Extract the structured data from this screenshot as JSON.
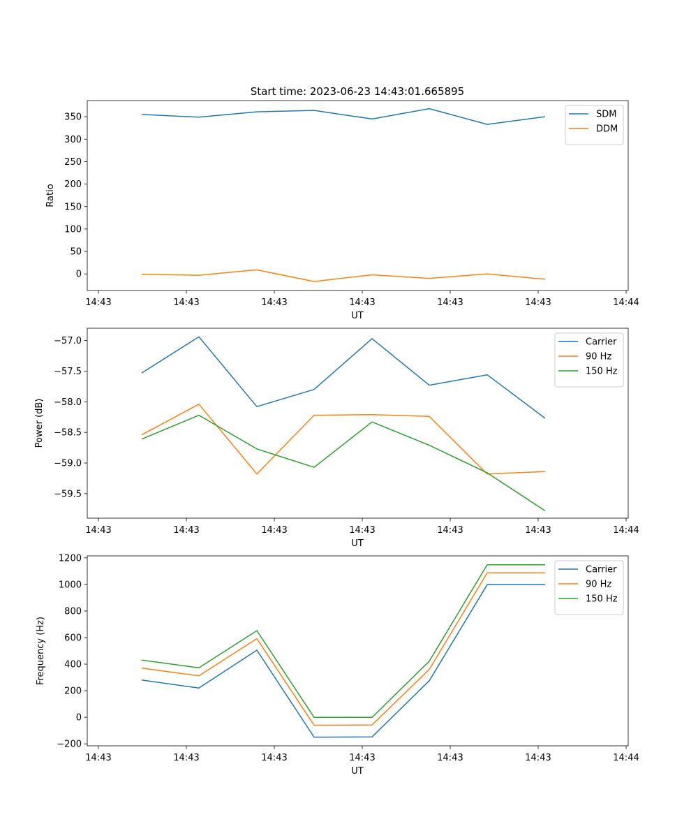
{
  "title": "Start time: 2023-06-23 14:43:01.665895",
  "colors": {
    "blue": "#1f77b4",
    "orange": "#ff7f0e",
    "green": "#2ca02c"
  },
  "chart_data": [
    {
      "type": "line",
      "title": "Start time: 2023-06-23 14:43:01.665895",
      "xlabel": "UT",
      "ylabel": "Ratio",
      "xtick_labels": [
        "14:43",
        "14:43",
        "14:43",
        "14:43",
        "14:43",
        "14:43",
        "14:44"
      ],
      "x_samples": [
        "p1",
        "p2",
        "p3",
        "p4",
        "p5",
        "p6",
        "p7",
        "p8"
      ],
      "yticks": [
        0,
        50,
        100,
        150,
        200,
        250,
        300,
        350
      ],
      "ylim": [
        -37,
        386
      ],
      "legend": "top-right",
      "grid": false,
      "series": [
        {
          "name": "SDM",
          "color": "#1f77b4",
          "values": [
            355,
            349,
            361,
            364,
            345,
            368,
            333,
            350
          ]
        },
        {
          "name": "DDM",
          "color": "#ff7f0e",
          "values": [
            -1,
            -3,
            9,
            -17,
            -2,
            -10,
            0,
            -12
          ]
        }
      ]
    },
    {
      "type": "line",
      "xlabel": "UT",
      "ylabel": "Power (dB)",
      "xtick_labels": [
        "14:43",
        "14:43",
        "14:43",
        "14:43",
        "14:43",
        "14:43",
        "14:44"
      ],
      "x_samples": [
        "p1",
        "p2",
        "p3",
        "p4",
        "p5",
        "p6",
        "p7",
        "p8"
      ],
      "yticks": [
        -57.0,
        -57.5,
        -58.0,
        -58.5,
        -59.0,
        -59.5
      ],
      "ytick_labels": [
        "−57.0",
        "−57.5",
        "−58.0",
        "−58.5",
        "−59.0",
        "−59.5"
      ],
      "ylim": [
        -59.9,
        -56.8
      ],
      "legend": "top-right",
      "grid": false,
      "series": [
        {
          "name": "Carrier",
          "color": "#1f77b4",
          "values": [
            -57.53,
            -56.94,
            -58.08,
            -57.8,
            -56.97,
            -57.73,
            -57.56,
            -58.27
          ]
        },
        {
          "name": "90 Hz",
          "color": "#ff7f0e",
          "values": [
            -58.54,
            -58.04,
            -59.18,
            -58.22,
            -58.21,
            -58.24,
            -59.18,
            -59.14
          ]
        },
        {
          "name": "150 Hz",
          "color": "#2ca02c",
          "values": [
            -58.61,
            -58.22,
            -58.77,
            -59.07,
            -58.33,
            -58.71,
            -59.16,
            -59.78
          ]
        }
      ]
    },
    {
      "type": "line",
      "xlabel": "UT",
      "ylabel": "Frequency (Hz)",
      "xtick_labels": [
        "14:43",
        "14:43",
        "14:43",
        "14:43",
        "14:43",
        "14:43",
        "14:44"
      ],
      "x_samples": [
        "p1",
        "p2",
        "p3",
        "p4",
        "p5",
        "p6",
        "p7",
        "p8"
      ],
      "yticks": [
        -200,
        0,
        200,
        400,
        600,
        800,
        1000,
        1200
      ],
      "ytick_labels": [
        "−200",
        "0",
        "200",
        "400",
        "600",
        "800",
        "1000",
        "1200"
      ],
      "ylim": [
        -215,
        1215
      ],
      "legend": "top-right",
      "grid": false,
      "series": [
        {
          "name": "Carrier",
          "color": "#1f77b4",
          "values": [
            280,
            220,
            505,
            -150,
            -148,
            275,
            998,
            998
          ]
        },
        {
          "name": "90 Hz",
          "color": "#ff7f0e",
          "values": [
            370,
            312,
            592,
            -60,
            -58,
            360,
            1087,
            1088
          ]
        },
        {
          "name": "150 Hz",
          "color": "#2ca02c",
          "values": [
            430,
            372,
            652,
            -1,
            -1,
            422,
            1148,
            1148
          ]
        }
      ]
    }
  ]
}
